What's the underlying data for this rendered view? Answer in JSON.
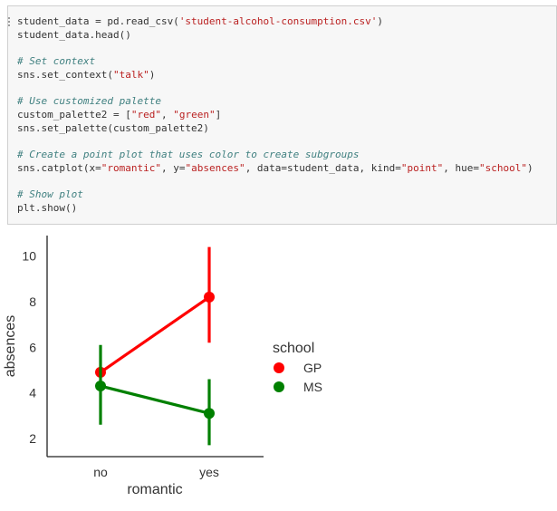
{
  "code_cell": {
    "lines": [
      {
        "type": "code",
        "parts": [
          [
            "student_data = pd.read_csv(",
            "n"
          ],
          [
            "'student-alcohol-consumption.csv'",
            "s"
          ],
          [
            ")",
            "n"
          ]
        ]
      },
      {
        "type": "code",
        "parts": [
          [
            "student_data.head()",
            "n"
          ]
        ]
      },
      {
        "type": "blank"
      },
      {
        "type": "comment",
        "text": "# Set context"
      },
      {
        "type": "code",
        "parts": [
          [
            "sns.set_context(",
            "n"
          ],
          [
            "\"talk\"",
            "s"
          ],
          [
            ")",
            "n"
          ]
        ]
      },
      {
        "type": "blank"
      },
      {
        "type": "comment",
        "text": "# Use customized palette"
      },
      {
        "type": "code",
        "parts": [
          [
            "custom_palette2 = [",
            "n"
          ],
          [
            "\"red\"",
            "s"
          ],
          [
            ", ",
            "n"
          ],
          [
            "\"green\"",
            "s"
          ],
          [
            "]",
            "n"
          ]
        ]
      },
      {
        "type": "code",
        "parts": [
          [
            "sns.set_palette(custom_palette2)",
            "n"
          ]
        ]
      },
      {
        "type": "blank"
      },
      {
        "type": "comment",
        "text": "# Create a point plot that uses color to create subgroups"
      },
      {
        "type": "code",
        "parts": [
          [
            "sns.catplot(x=",
            "n"
          ],
          [
            "\"romantic\"",
            "s"
          ],
          [
            ", y=",
            "n"
          ],
          [
            "\"absences\"",
            "s"
          ],
          [
            ", data=student_data, kind=",
            "n"
          ],
          [
            "\"point\"",
            "s"
          ],
          [
            ", hue=",
            "n"
          ],
          [
            "\"school\"",
            "s"
          ],
          [
            ")",
            "n"
          ]
        ]
      },
      {
        "type": "blank"
      },
      {
        "type": "comment",
        "text": "# Show plot"
      },
      {
        "type": "code",
        "parts": [
          [
            "plt.show()",
            "n"
          ]
        ]
      }
    ]
  },
  "chart_data": {
    "type": "point",
    "categories": [
      "no",
      "yes"
    ],
    "xlabel": "romantic",
    "ylabel": "absences",
    "yticks": [
      2,
      4,
      6,
      8,
      10
    ],
    "ylim": [
      1.2,
      10.9
    ],
    "legend_title": "school",
    "legend_position": "right",
    "series": [
      {
        "name": "GP",
        "color": "#ff0000",
        "values": [
          4.9,
          8.2
        ],
        "ci_low": [
          4.9,
          6.2
        ],
        "ci_high": [
          4.9,
          10.4
        ]
      },
      {
        "name": "MS",
        "color": "#008000",
        "values": [
          4.3,
          3.1
        ],
        "ci_low": [
          2.6,
          1.7
        ],
        "ci_high": [
          6.1,
          4.6
        ]
      }
    ]
  }
}
